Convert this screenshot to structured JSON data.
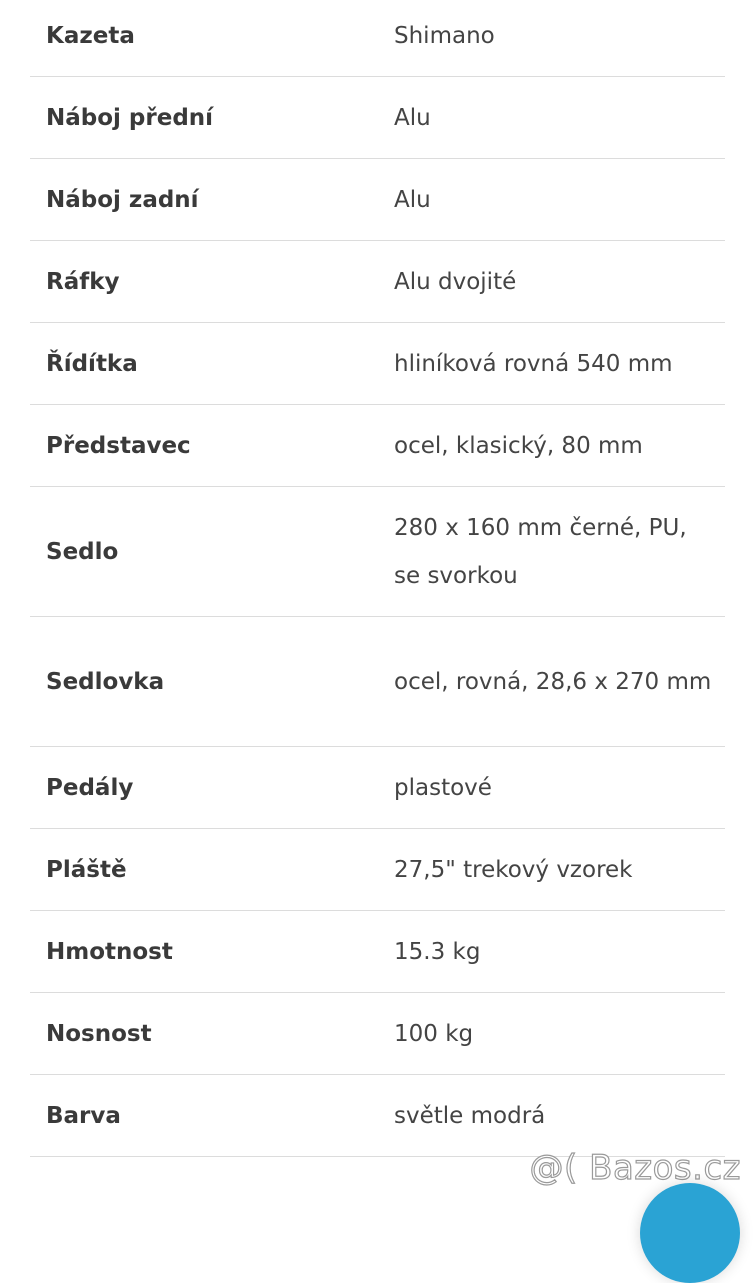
{
  "specs": [
    {
      "label": "Kazeta",
      "value": "Shimano"
    },
    {
      "label": "Náboj přední",
      "value": "Alu"
    },
    {
      "label": "Náboj zadní",
      "value": "Alu"
    },
    {
      "label": "Ráfky",
      "value": "Alu dvojité"
    },
    {
      "label": "Řídítka",
      "value": "hliníková rovná 540 mm"
    },
    {
      "label": "Představec",
      "value": "ocel, klasický, 80 mm"
    },
    {
      "label": "Sedlo",
      "value": "280 x 160 mm černé, PU, se svorkou"
    },
    {
      "label": "Sedlovka",
      "value": "ocel, rovná, 28,6 x 270 mm"
    },
    {
      "label": "Pedály",
      "value": "plastové"
    },
    {
      "label": "Pláště",
      "value": "27,5\" trekový vzorek"
    },
    {
      "label": "Hmotnost",
      "value": "15.3 kg"
    },
    {
      "label": "Nosnost",
      "value": "100 kg"
    },
    {
      "label": "Barva",
      "value": "světle modrá"
    }
  ],
  "watermark": "@( Bazos.cz",
  "colors": {
    "fab": "#2aa3d4",
    "divider": "#dcdcdc"
  }
}
